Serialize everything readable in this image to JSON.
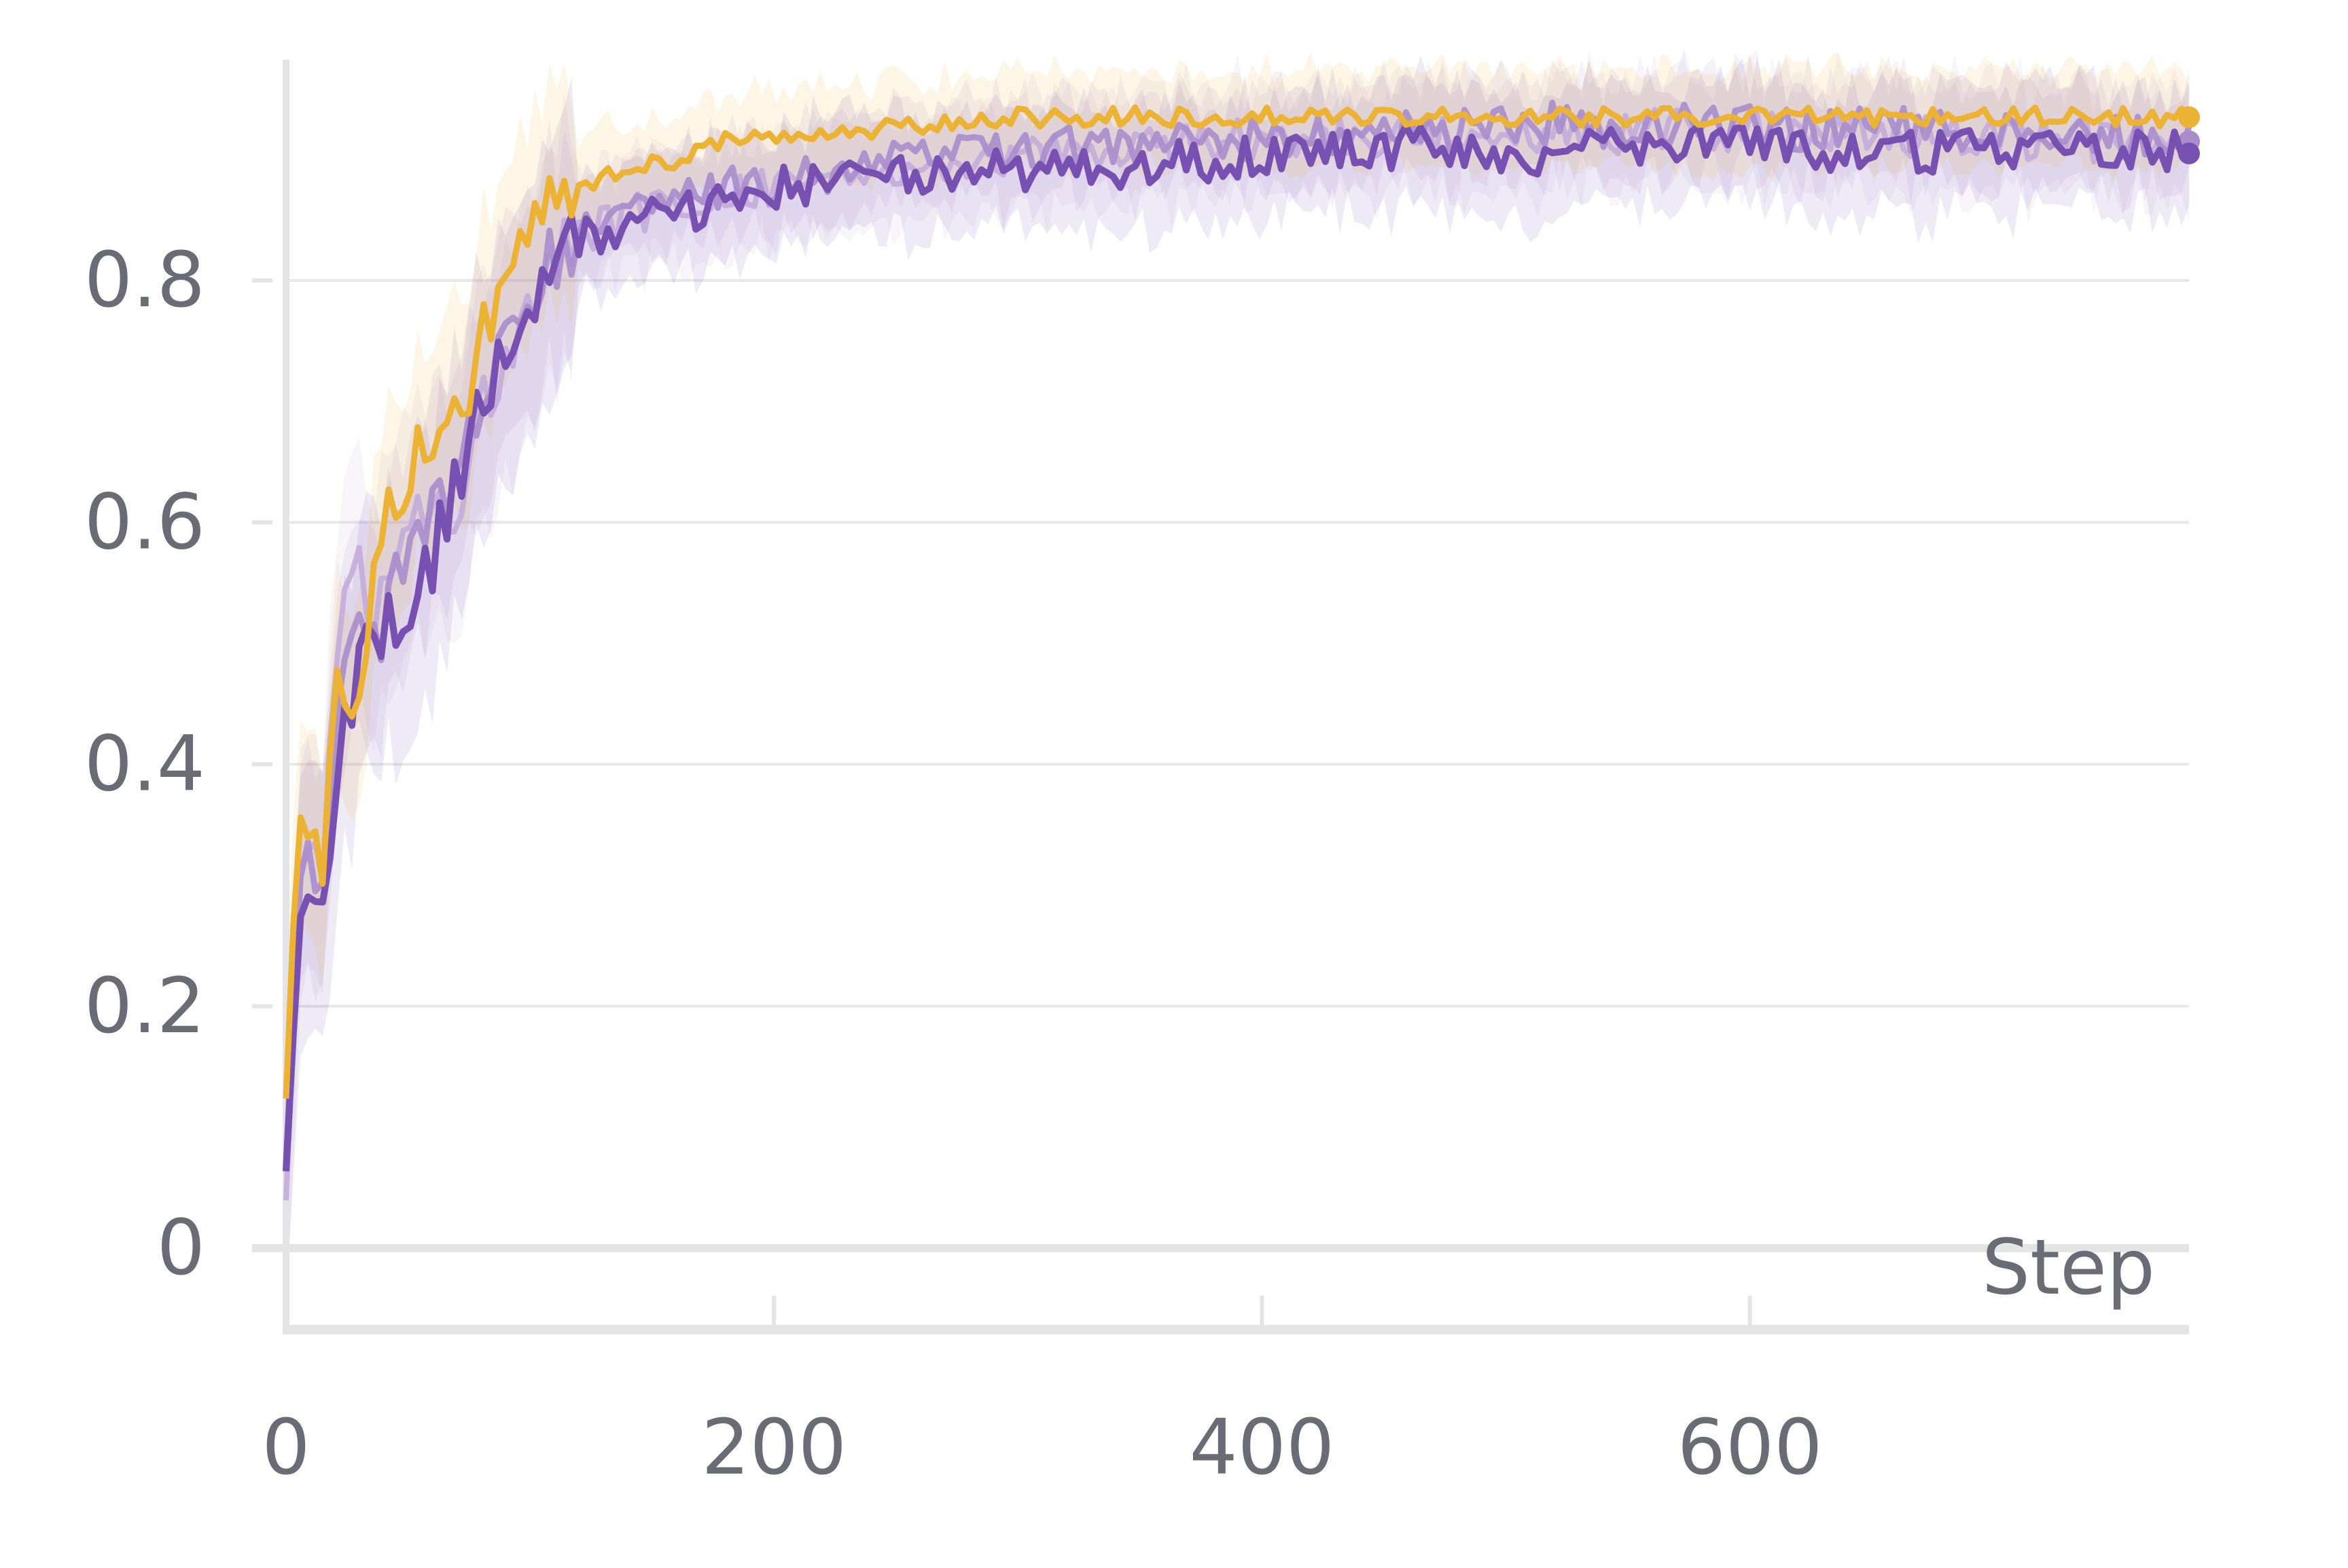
{
  "chart_data": {
    "type": "line",
    "xlabel": "Step",
    "ylabel": "",
    "title": "",
    "xlim": [
      0,
      780
    ],
    "ylim": [
      -0.06,
      0.98
    ],
    "x_ticks": [
      0,
      200,
      400,
      600
    ],
    "y_ticks": [
      0,
      0.2,
      0.4,
      0.6,
      0.8
    ],
    "x_tick_labels": [
      "0",
      "200",
      "400",
      "600"
    ],
    "y_tick_labels": [
      "0",
      "0.2",
      "0.4",
      "0.6",
      "0.8"
    ],
    "grid": "horizontal",
    "legend": "none",
    "series": [
      {
        "color": "#c3acd9",
        "style": "light",
        "band": 0.045,
        "points": [
          [
            0,
            0.05
          ],
          [
            5,
            0.3
          ],
          [
            10,
            0.35
          ],
          [
            15,
            0.32
          ],
          [
            20,
            0.45
          ],
          [
            25,
            0.55
          ],
          [
            30,
            0.58
          ],
          [
            35,
            0.5
          ],
          [
            40,
            0.55
          ],
          [
            45,
            0.57
          ],
          [
            50,
            0.6
          ],
          [
            55,
            0.62
          ],
          [
            60,
            0.62
          ],
          [
            65,
            0.6
          ],
          [
            70,
            0.62
          ],
          [
            75,
            0.66
          ],
          [
            80,
            0.7
          ],
          [
            85,
            0.72
          ],
          [
            90,
            0.74
          ],
          [
            95,
            0.77
          ],
          [
            100,
            0.79
          ],
          [
            110,
            0.82
          ],
          [
            120,
            0.84
          ],
          [
            130,
            0.845
          ],
          [
            140,
            0.85
          ],
          [
            150,
            0.86
          ],
          [
            160,
            0.865
          ],
          [
            170,
            0.87
          ],
          [
            180,
            0.875
          ],
          [
            200,
            0.88
          ],
          [
            220,
            0.885
          ],
          [
            240,
            0.89
          ],
          [
            260,
            0.895
          ],
          [
            280,
            0.9
          ],
          [
            300,
            0.905
          ],
          [
            320,
            0.905
          ],
          [
            340,
            0.91
          ],
          [
            360,
            0.91
          ],
          [
            380,
            0.915
          ],
          [
            400,
            0.915
          ],
          [
            420,
            0.915
          ],
          [
            440,
            0.92
          ],
          [
            460,
            0.92
          ],
          [
            480,
            0.92
          ],
          [
            500,
            0.92
          ],
          [
            520,
            0.925
          ],
          [
            540,
            0.92
          ],
          [
            560,
            0.925
          ],
          [
            580,
            0.925
          ],
          [
            600,
            0.925
          ],
          [
            620,
            0.92
          ],
          [
            640,
            0.925
          ],
          [
            660,
            0.92
          ],
          [
            680,
            0.92
          ],
          [
            700,
            0.92
          ],
          [
            720,
            0.915
          ],
          [
            740,
            0.915
          ],
          [
            760,
            0.915
          ],
          [
            780,
            0.915
          ]
        ]
      },
      {
        "color": "#a98ccb",
        "style": "medium",
        "band": 0.04,
        "points": [
          [
            0,
            0.05
          ],
          [
            5,
            0.28
          ],
          [
            10,
            0.33
          ],
          [
            15,
            0.3
          ],
          [
            20,
            0.42
          ],
          [
            25,
            0.5
          ],
          [
            30,
            0.52
          ],
          [
            35,
            0.5
          ],
          [
            40,
            0.52
          ],
          [
            45,
            0.55
          ],
          [
            50,
            0.57
          ],
          [
            55,
            0.58
          ],
          [
            60,
            0.6
          ],
          [
            65,
            0.62
          ],
          [
            70,
            0.64
          ],
          [
            75,
            0.67
          ],
          [
            80,
            0.7
          ],
          [
            85,
            0.73
          ],
          [
            90,
            0.75
          ],
          [
            95,
            0.77
          ],
          [
            100,
            0.79
          ],
          [
            110,
            0.82
          ],
          [
            120,
            0.84
          ],
          [
            130,
            0.85
          ],
          [
            140,
            0.855
          ],
          [
            150,
            0.86
          ],
          [
            160,
            0.865
          ],
          [
            170,
            0.87
          ],
          [
            180,
            0.875
          ],
          [
            200,
            0.88
          ],
          [
            220,
            0.89
          ],
          [
            240,
            0.895
          ],
          [
            260,
            0.9
          ],
          [
            280,
            0.905
          ],
          [
            300,
            0.905
          ],
          [
            320,
            0.91
          ],
          [
            340,
            0.91
          ],
          [
            360,
            0.915
          ],
          [
            380,
            0.915
          ],
          [
            400,
            0.92
          ],
          [
            420,
            0.92
          ],
          [
            440,
            0.925
          ],
          [
            460,
            0.925
          ],
          [
            480,
            0.925
          ],
          [
            500,
            0.925
          ],
          [
            520,
            0.93
          ],
          [
            540,
            0.925
          ],
          [
            560,
            0.93
          ],
          [
            580,
            0.93
          ],
          [
            600,
            0.93
          ],
          [
            620,
            0.925
          ],
          [
            640,
            0.93
          ],
          [
            660,
            0.925
          ],
          [
            680,
            0.925
          ],
          [
            700,
            0.925
          ],
          [
            720,
            0.92
          ],
          [
            740,
            0.92
          ],
          [
            760,
            0.92
          ],
          [
            780,
            0.915
          ]
        ]
      },
      {
        "color": "#7750b2",
        "style": "dark",
        "band": 0.05,
        "points": [
          [
            0,
            0.05
          ],
          [
            5,
            0.25
          ],
          [
            10,
            0.3
          ],
          [
            15,
            0.28
          ],
          [
            20,
            0.38
          ],
          [
            25,
            0.44
          ],
          [
            30,
            0.47
          ],
          [
            35,
            0.5
          ],
          [
            40,
            0.52
          ],
          [
            45,
            0.5
          ],
          [
            50,
            0.53
          ],
          [
            55,
            0.55
          ],
          [
            60,
            0.57
          ],
          [
            65,
            0.6
          ],
          [
            70,
            0.63
          ],
          [
            75,
            0.67
          ],
          [
            80,
            0.7
          ],
          [
            85,
            0.72
          ],
          [
            90,
            0.74
          ],
          [
            95,
            0.76
          ],
          [
            100,
            0.78
          ],
          [
            110,
            0.81
          ],
          [
            120,
            0.83
          ],
          [
            130,
            0.84
          ],
          [
            140,
            0.845
          ],
          [
            150,
            0.85
          ],
          [
            160,
            0.855
          ],
          [
            170,
            0.86
          ],
          [
            180,
            0.865
          ],
          [
            200,
            0.875
          ],
          [
            220,
            0.88
          ],
          [
            240,
            0.885
          ],
          [
            260,
            0.89
          ],
          [
            280,
            0.895
          ],
          [
            300,
            0.89
          ],
          [
            320,
            0.895
          ],
          [
            340,
            0.885
          ],
          [
            360,
            0.9
          ],
          [
            380,
            0.9
          ],
          [
            400,
            0.905
          ],
          [
            420,
            0.905
          ],
          [
            440,
            0.91
          ],
          [
            460,
            0.91
          ],
          [
            480,
            0.905
          ],
          [
            500,
            0.9
          ],
          [
            520,
            0.905
          ],
          [
            540,
            0.91
          ],
          [
            560,
            0.91
          ],
          [
            580,
            0.915
          ],
          [
            600,
            0.91
          ],
          [
            620,
            0.91
          ],
          [
            640,
            0.905
          ],
          [
            660,
            0.905
          ],
          [
            680,
            0.905
          ],
          [
            700,
            0.91
          ],
          [
            720,
            0.91
          ],
          [
            740,
            0.91
          ],
          [
            760,
            0.91
          ],
          [
            780,
            0.905
          ]
        ]
      },
      {
        "color": "#ebb233",
        "style": "main",
        "band": 0.04,
        "points": [
          [
            0,
            0.1
          ],
          [
            5,
            0.35
          ],
          [
            10,
            0.37
          ],
          [
            15,
            0.33
          ],
          [
            20,
            0.45
          ],
          [
            25,
            0.44
          ],
          [
            30,
            0.43
          ],
          [
            35,
            0.55
          ],
          [
            40,
            0.6
          ],
          [
            45,
            0.62
          ],
          [
            50,
            0.63
          ],
          [
            55,
            0.66
          ],
          [
            60,
            0.68
          ],
          [
            65,
            0.7
          ],
          [
            70,
            0.68
          ],
          [
            75,
            0.7
          ],
          [
            80,
            0.75
          ],
          [
            85,
            0.78
          ],
          [
            90,
            0.8
          ],
          [
            95,
            0.82
          ],
          [
            100,
            0.85
          ],
          [
            105,
            0.87
          ],
          [
            110,
            0.875
          ],
          [
            120,
            0.88
          ],
          [
            130,
            0.885
          ],
          [
            140,
            0.89
          ],
          [
            150,
            0.895
          ],
          [
            160,
            0.9
          ],
          [
            170,
            0.91
          ],
          [
            180,
            0.915
          ],
          [
            200,
            0.92
          ],
          [
            220,
            0.925
          ],
          [
            240,
            0.925
          ],
          [
            260,
            0.93
          ],
          [
            280,
            0.93
          ],
          [
            300,
            0.935
          ],
          [
            320,
            0.935
          ],
          [
            340,
            0.935
          ],
          [
            360,
            0.935
          ],
          [
            380,
            0.935
          ],
          [
            400,
            0.935
          ],
          [
            420,
            0.935
          ],
          [
            440,
            0.935
          ],
          [
            460,
            0.935
          ],
          [
            480,
            0.935
          ],
          [
            500,
            0.935
          ],
          [
            520,
            0.935
          ],
          [
            540,
            0.935
          ],
          [
            560,
            0.935
          ],
          [
            580,
            0.935
          ],
          [
            600,
            0.935
          ],
          [
            620,
            0.935
          ],
          [
            640,
            0.935
          ],
          [
            660,
            0.935
          ],
          [
            680,
            0.935
          ],
          [
            700,
            0.935
          ],
          [
            720,
            0.935
          ],
          [
            740,
            0.935
          ],
          [
            760,
            0.935
          ],
          [
            780,
            0.935
          ]
        ]
      }
    ]
  }
}
